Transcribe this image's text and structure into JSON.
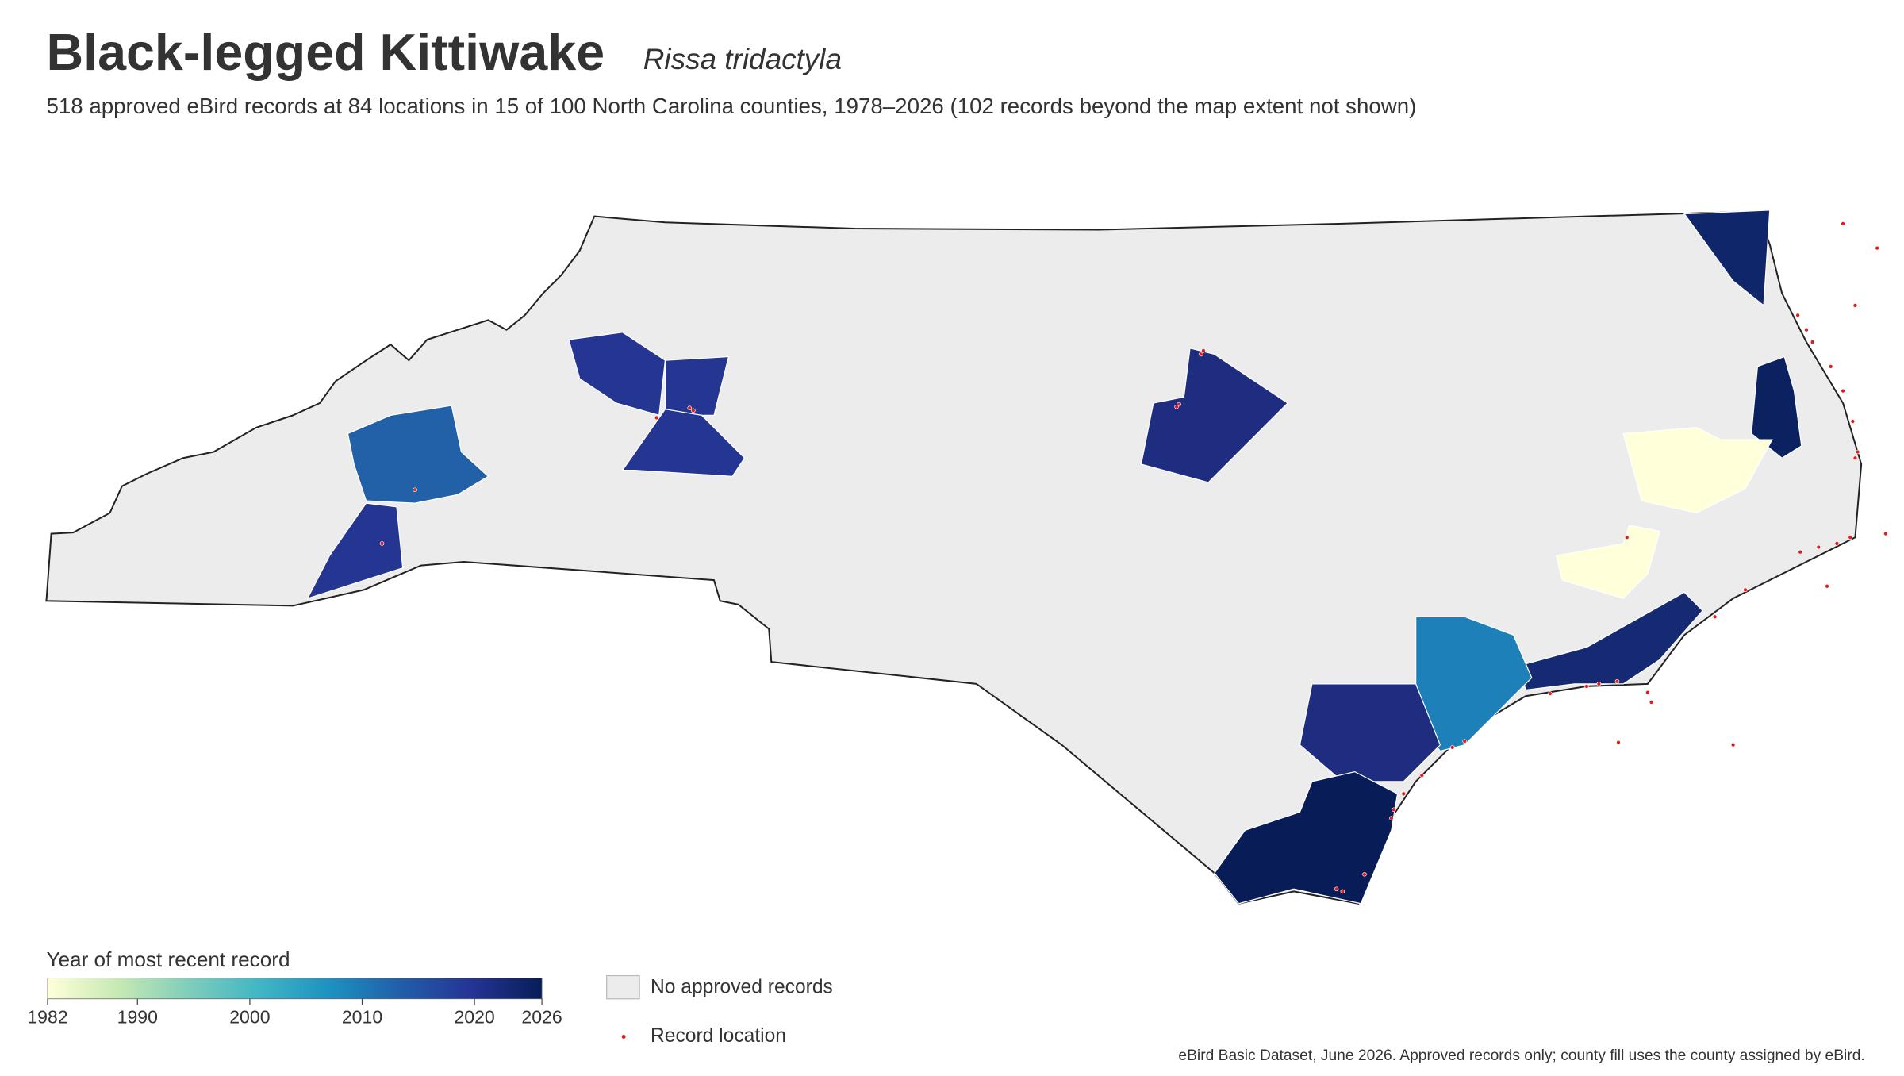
{
  "chart_data": {
    "type": "choropleth",
    "title": "Black-legged Kittiwake",
    "subtitle": "Rissa tridactyla",
    "description": "518 approved eBird records at 84 locations in 15 of 100 North Carolina counties, 1978–2026 (102 records beyond the map extent not shown)",
    "colorbar_title": "Year of most recent record",
    "colorbar_lim": [
      1982,
      2026
    ],
    "colorbar_ticks": [
      1982,
      1990,
      2000,
      2010,
      2020,
      2026
    ],
    "colorbar_colors": [
      "#ffffd9",
      "#c7e9b4",
      "#7fcdbb",
      "#41b6c4",
      "#1d91c0",
      "#225ea8",
      "#253494",
      "#081d58"
    ],
    "no_data_label": "No approved records",
    "no_data_color": "#ececec",
    "point_label": "Record location",
    "point_color": "#e41a1c",
    "regions": [
      {
        "year": 2012,
        "color": "#2260a8"
      },
      {
        "year": 2019,
        "color": "#243592"
      },
      {
        "year": 2019,
        "color": "#243592"
      },
      {
        "year": 2019,
        "color": "#243592"
      },
      {
        "year": 2019,
        "color": "#243592"
      },
      {
        "year": 2021,
        "color": "#1f2d80"
      },
      {
        "year": 2025,
        "color": "#0b2160"
      },
      {
        "year": 2024,
        "color": "#10266a"
      },
      {
        "year": 1982,
        "color": "#ffffd9"
      },
      {
        "year": 1982,
        "color": "#ffffd9"
      },
      {
        "year": 2023,
        "color": "#152a73"
      },
      {
        "year": 2007,
        "color": "#1d80b8"
      },
      {
        "year": 2020,
        "color": "#1f2d80"
      },
      {
        "year": 2026,
        "color": "#081d58"
      }
    ],
    "source": "eBird Basic Dataset, June 2026. Approved records only; county fill uses the county assigned by eBird."
  }
}
